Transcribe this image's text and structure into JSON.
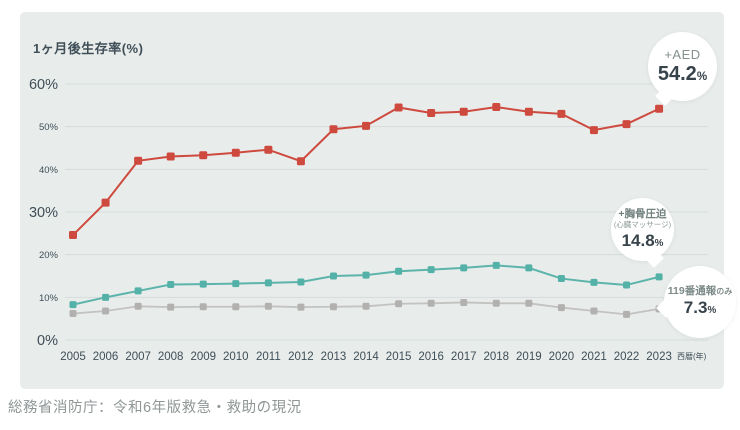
{
  "page": {
    "source_caption": "総務省消防庁：令和6年版救急・救助の現況"
  },
  "chart": {
    "colors": {
      "panel_bg": "#e8eceb",
      "grid": "#d6dddc",
      "text_dark": "#3f4e57",
      "bubble_label": "#84918f",
      "bubble_value": "#37434b",
      "bubble_bg": "#ffffff",
      "aed": "#ce4a3e",
      "cpr": "#53b1a8",
      "call119": "#b2b1af"
    },
    "annotations": {
      "aed": {
        "label": "+AED",
        "value": "54.2",
        "unit": "%"
      },
      "cpr": {
        "label": "+胸骨圧迫",
        "sublabel": "(心臓マッサージ)",
        "value": "14.8",
        "unit": "%"
      },
      "call119": {
        "label": "119番通報",
        "label_suffix": "のみ",
        "value": "7.3",
        "unit": "%"
      }
    }
  },
  "chart_data": {
    "type": "line",
    "title": "1ヶ月後生存率(%)",
    "x_unit_label": "西暦(年)",
    "x": [
      2005,
      2006,
      2007,
      2008,
      2009,
      2010,
      2011,
      2012,
      2013,
      2014,
      2015,
      2016,
      2017,
      2018,
      2019,
      2020,
      2021,
      2022,
      2023
    ],
    "ylim": [
      0,
      60
    ],
    "yticks": [
      0,
      10,
      20,
      30,
      40,
      50,
      60
    ],
    "ytick_emphasis": [
      0,
      30,
      60
    ],
    "grid": true,
    "legend_position": "annotation-bubbles",
    "series": [
      {
        "key": "aed",
        "name": "+AED",
        "color": "#ce4a3e",
        "line_color": "#ce4a3e",
        "line_width": 2,
        "marker_size": 8,
        "values": [
          24.6,
          32.2,
          42.0,
          43.0,
          43.3,
          43.9,
          44.6,
          41.9,
          49.4,
          50.2,
          54.5,
          53.2,
          53.5,
          54.6,
          53.5,
          53.0,
          49.2,
          50.6,
          54.2
        ]
      },
      {
        "key": "cpr",
        "name": "+胸骨圧迫(心臓マッサージ)",
        "color": "#53b1a8",
        "line_color": "#5cb4ab",
        "line_width": 2,
        "marker_size": 7,
        "values": [
          8.3,
          10.0,
          11.5,
          13.0,
          13.1,
          13.2,
          13.4,
          13.6,
          15.0,
          15.2,
          16.1,
          16.5,
          16.9,
          17.5,
          16.9,
          14.4,
          13.5,
          12.9,
          14.8
        ]
      },
      {
        "key": "call119",
        "name": "119番通報のみ",
        "color": "#b2b1af",
        "line_color": "#c3c2c0",
        "line_width": 1.8,
        "marker_size": 7,
        "values": [
          6.2,
          6.8,
          7.9,
          7.7,
          7.8,
          7.8,
          7.9,
          7.7,
          7.8,
          7.9,
          8.5,
          8.6,
          8.8,
          8.6,
          8.6,
          7.6,
          6.8,
          6.0,
          7.3
        ]
      }
    ]
  }
}
